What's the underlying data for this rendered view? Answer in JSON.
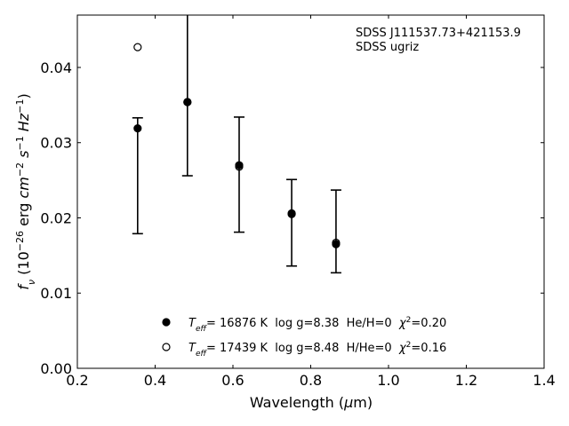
{
  "chart_data": {
    "type": "scatter",
    "annotation": [
      "SDSS J111537.73+421153.9",
      "SDSS ugriz"
    ],
    "xlabel_parts": [
      {
        "t": "Wavelength ("
      },
      {
        "t": "μ",
        "i": true
      },
      {
        "t": "m)"
      }
    ],
    "ylabel_parts": [
      {
        "t": "f",
        "i": true
      },
      {
        "t": "ν",
        "i": true,
        "sub": true
      },
      {
        "t": " (10"
      },
      {
        "t": "−26",
        "sup": true
      },
      {
        "t": " erg "
      },
      {
        "t": "cm",
        "i": true
      },
      {
        "t": "−2",
        "sup": true
      },
      {
        "t": " "
      },
      {
        "t": "s",
        "i": true
      },
      {
        "t": "−1",
        "sup": true
      },
      {
        "t": " "
      },
      {
        "t": "Hz",
        "i": true
      },
      {
        "t": "−1",
        "sup": true
      },
      {
        "t": ")"
      }
    ],
    "xlim": [
      0.2,
      1.4
    ],
    "ylim": [
      0.0,
      0.047
    ],
    "xticks": [
      "0.2",
      "0.4",
      "0.6",
      "0.8",
      "1.0",
      "1.2",
      "1.4"
    ],
    "yticks": [
      "0.00",
      "0.01",
      "0.02",
      "0.03",
      "0.04"
    ],
    "observed": {
      "x": [
        0.355,
        0.483,
        0.616,
        0.751,
        0.865
      ],
      "err_low": [
        0.0179,
        0.0256,
        0.0181,
        0.0136,
        0.0127
      ],
      "err_high": [
        0.0333,
        0.048,
        0.0334,
        0.0251,
        0.0237
      ]
    },
    "series": [
      {
        "name": "He/H=0 model",
        "marker": "filled",
        "x": [
          0.355,
          0.483,
          0.616,
          0.751,
          0.865
        ],
        "y": [
          0.0319,
          0.0354,
          0.027,
          0.0206,
          0.0165
        ],
        "legend": {
          "T": "T",
          "sub": "eff",
          "text": "= 16876 K  log g=8.38  He/H=0  ",
          "chi": "χ",
          "sup": "2",
          "val": "=0.20"
        }
      },
      {
        "name": "H/He=0 model",
        "marker": "open",
        "x": [
          0.355,
          0.483,
          0.616,
          0.751,
          0.865
        ],
        "y": [
          0.0427,
          0.0354,
          0.0268,
          0.0205,
          0.0167
        ],
        "legend": {
          "T": "T",
          "sub": "eff",
          "text": "= 17439 K  log g=8.48  H/He=0  ",
          "chi": "χ",
          "sup": "2",
          "val": "=0.16"
        }
      }
    ],
    "legend_placement": "bottom-center"
  }
}
